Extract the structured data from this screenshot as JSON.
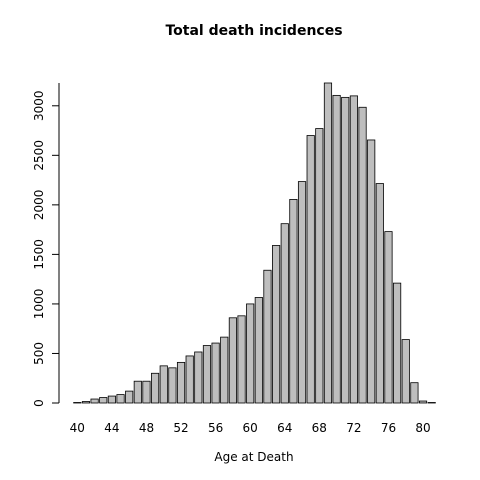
{
  "chart_data": {
    "type": "bar",
    "title": "Total death incidences",
    "xlabel": "Age at Death",
    "ylabel": "",
    "x_tick_labels": [
      "40",
      "44",
      "48",
      "52",
      "56",
      "60",
      "64",
      "68",
      "72",
      "76",
      "80"
    ],
    "y_tick_labels": [
      "0",
      "500",
      "1000",
      "1500",
      "2000",
      "2500",
      "3000"
    ],
    "ylim": [
      0,
      3230
    ],
    "grid": false,
    "bar_color": "#bebebe",
    "bar_edge_color": "#000000",
    "categories": [
      40,
      41,
      42,
      43,
      44,
      45,
      46,
      47,
      48,
      49,
      50,
      51,
      52,
      53,
      54,
      55,
      56,
      57,
      58,
      59,
      60,
      61,
      62,
      63,
      64,
      65,
      66,
      67,
      68,
      69,
      70,
      71,
      72,
      73,
      74,
      75,
      76,
      77,
      78,
      79,
      80,
      81
    ],
    "values": [
      5,
      15,
      40,
      55,
      70,
      85,
      120,
      220,
      220,
      300,
      375,
      355,
      410,
      475,
      515,
      580,
      605,
      665,
      860,
      880,
      1000,
      1065,
      1340,
      1590,
      1810,
      2055,
      2235,
      2700,
      2770,
      3230,
      3105,
      3085,
      3100,
      2985,
      2655,
      2215,
      1730,
      1210,
      640,
      205,
      20,
      5
    ]
  }
}
